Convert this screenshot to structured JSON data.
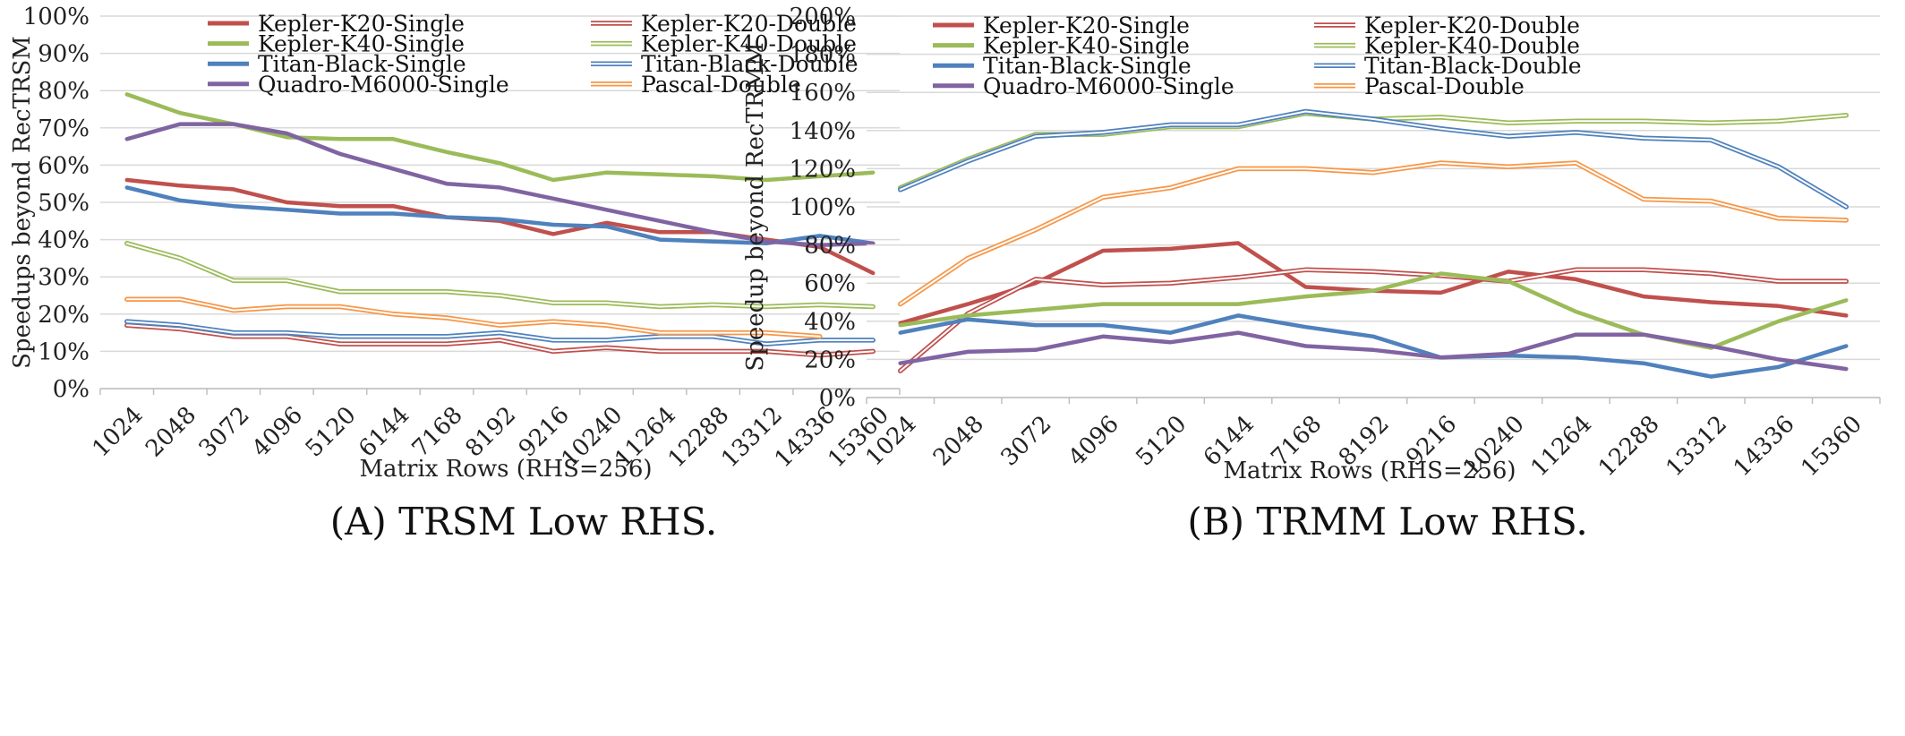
{
  "chart_data": [
    {
      "type": "line",
      "caption": "(A) TRSM Low RHS.",
      "xlabel": "Matrix Rows (RHS=256)",
      "ylabel": "Speedups beyond RecTRSM",
      "ylim": [
        0,
        100
      ],
      "yticks": [
        "0%",
        "10%",
        "20%",
        "30%",
        "40%",
        "50%",
        "60%",
        "70%",
        "80%",
        "90%",
        "100%"
      ],
      "grid": true,
      "legend": "top",
      "categories": [
        "1024",
        "2048",
        "3072",
        "4096",
        "5120",
        "6144",
        "7168",
        "8192",
        "9216",
        "10240",
        "11264",
        "12288",
        "13312",
        "14336",
        "15360"
      ],
      "series": [
        {
          "name": "Kepler-K20-Single",
          "color": "#c0504d",
          "style": "solid",
          "values": [
            56,
            54.5,
            53.5,
            50,
            49,
            49,
            46,
            45,
            41.5,
            44.5,
            42,
            42,
            40,
            38,
            31
          ]
        },
        {
          "name": "Kepler-K20-Double",
          "color": "#c0504d",
          "style": "double",
          "values": [
            17,
            16,
            14,
            14,
            12,
            12,
            12,
            13,
            10,
            11,
            10,
            10,
            10,
            9,
            10
          ]
        },
        {
          "name": "Kepler-K40-Single",
          "color": "#9bbb59",
          "style": "solid",
          "values": [
            79,
            74,
            71,
            67.5,
            67,
            67,
            63.5,
            60.5,
            56,
            58,
            57.5,
            57,
            56,
            57,
            58
          ]
        },
        {
          "name": "Kepler-K40-Double",
          "color": "#9bbb59",
          "style": "double",
          "values": [
            39,
            35,
            29,
            29,
            26,
            26,
            26,
            25,
            23,
            23,
            22,
            22.5,
            22,
            22.5,
            22
          ]
        },
        {
          "name": "Titan-Black-Single",
          "color": "#4f81bd",
          "style": "solid",
          "values": [
            54,
            50.5,
            49,
            48,
            47,
            47,
            46,
            45.5,
            44,
            43.5,
            40,
            39.5,
            39,
            41,
            39
          ]
        },
        {
          "name": "Titan-Black-Double",
          "color": "#4f81bd",
          "style": "double",
          "values": [
            18,
            17,
            15,
            15,
            14,
            14,
            14,
            15,
            13,
            13,
            14,
            14,
            12,
            13,
            13
          ]
        },
        {
          "name": "Quadro-M6000-Single",
          "color": "#8064a2",
          "style": "solid",
          "values": [
            67,
            71,
            71,
            68.5,
            63,
            59,
            55,
            54,
            51,
            48,
            45,
            42,
            39.5,
            38.5,
            39
          ]
        },
        {
          "name": "Pascal-Double",
          "color": "#f79646",
          "style": "double",
          "values": [
            24,
            24,
            21,
            22,
            22,
            20,
            19,
            17,
            18,
            17,
            15,
            15,
            15,
            14,
            null
          ]
        }
      ]
    },
    {
      "type": "line",
      "caption": "(B) TRMM Low RHS.",
      "xlabel": "Matrix Rows (RHS=256)",
      "ylabel": "Speedup beyond RecTRMM",
      "ylim": [
        0,
        200
      ],
      "yticks": [
        "0%",
        "20%",
        "40%",
        "60%",
        "80%",
        "100%",
        "120%",
        "140%",
        "160%",
        "180%",
        "200%"
      ],
      "grid": true,
      "legend": "top",
      "categories": [
        "1024",
        "2048",
        "3072",
        "4096",
        "5120",
        "6144",
        "7168",
        "8192",
        "9216",
        "10240",
        "11264",
        "12288",
        "13312",
        "14336",
        "15360"
      ],
      "series": [
        {
          "name": "Kepler-K20-Single",
          "color": "#c0504d",
          "style": "solid",
          "values": [
            39,
            49,
            60,
            77,
            78,
            81,
            58,
            56,
            55,
            66,
            62,
            53,
            50,
            48,
            43
          ]
        },
        {
          "name": "Kepler-K20-Double",
          "color": "#c0504d",
          "style": "double",
          "values": [
            14,
            44,
            62,
            59,
            60,
            63,
            67,
            66,
            64,
            61,
            67,
            67,
            65,
            61,
            61
          ]
        },
        {
          "name": "Kepler-K40-Single",
          "color": "#9bbb59",
          "style": "solid",
          "values": [
            38,
            43,
            46,
            49,
            49,
            49,
            53,
            56,
            65,
            61,
            45,
            33,
            26,
            40,
            51
          ]
        },
        {
          "name": "Kepler-K40-Double",
          "color": "#9bbb59",
          "style": "double",
          "values": [
            110,
            125,
            138,
            138,
            142,
            142,
            149,
            146,
            147,
            144,
            145,
            145,
            144,
            145,
            148
          ]
        },
        {
          "name": "Titan-Black-Single",
          "color": "#4f81bd",
          "style": "solid",
          "values": [
            34,
            41,
            38,
            38,
            34,
            43,
            37,
            32,
            21,
            22,
            21,
            18,
            11,
            16,
            27
          ]
        },
        {
          "name": "Titan-Black-Double",
          "color": "#4f81bd",
          "style": "double",
          "values": [
            109,
            124,
            137,
            139,
            143,
            143,
            150,
            146,
            141,
            137,
            139,
            136,
            135,
            121,
            100
          ]
        },
        {
          "name": "Quadro-M6000-Single",
          "color": "#8064a2",
          "style": "solid",
          "values": [
            18,
            24,
            25,
            32,
            29,
            34,
            27,
            25,
            21,
            23,
            33,
            33,
            27,
            20,
            15
          ]
        },
        {
          "name": "Pascal-Double",
          "color": "#f79646",
          "style": "double",
          "values": [
            49,
            73,
            88,
            105,
            110,
            120,
            120,
            118,
            123,
            121,
            123,
            104,
            103,
            94,
            93
          ]
        }
      ]
    }
  ]
}
